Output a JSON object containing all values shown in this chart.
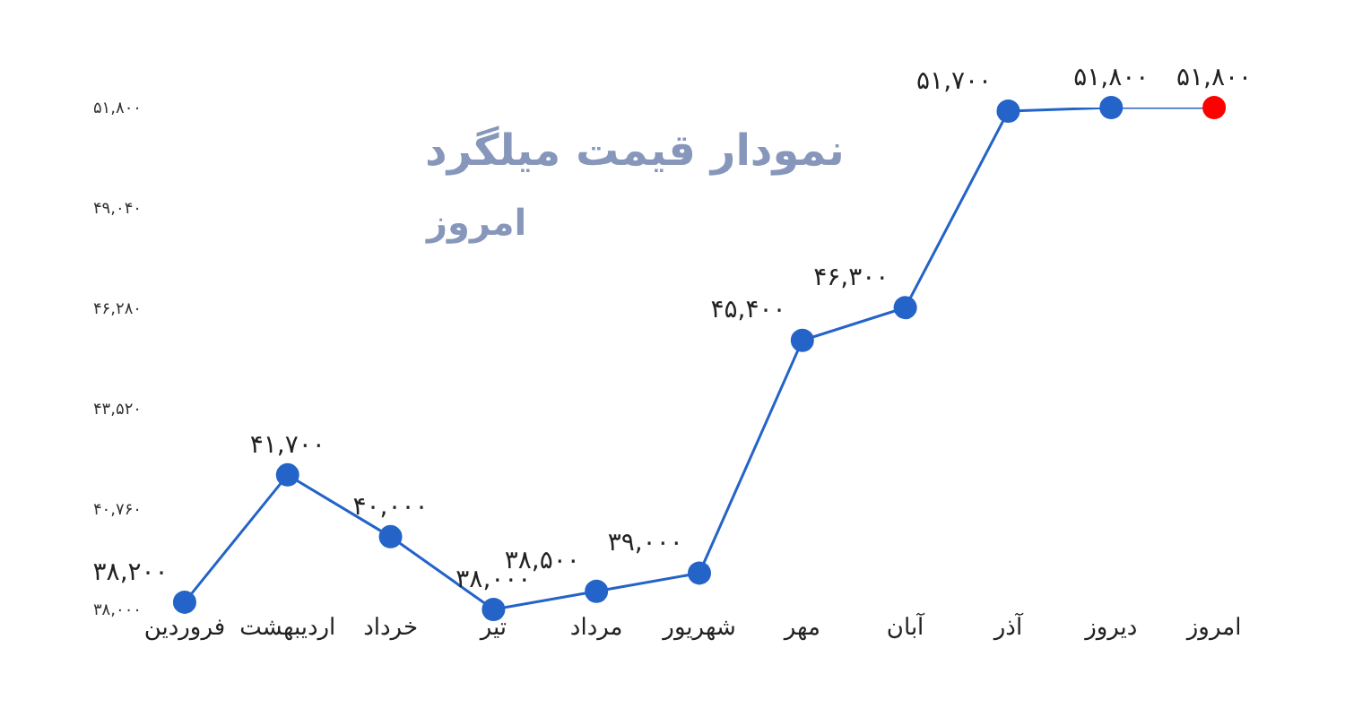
{
  "chart_data": {
    "type": "line",
    "title": "نمودار قیمت میلگرد",
    "subtitle": "امروز",
    "categories": [
      "فروردین",
      "اردیبهشت",
      "خرداد",
      "تیر",
      "مرداد",
      "شهریور",
      "مهر",
      "آبان",
      "آذر",
      "دیروز",
      "امروز"
    ],
    "series": [
      {
        "color": "#2463c8",
        "colors": [
          "#2463c8",
          "#2463c8",
          "#2463c8",
          "#2463c8",
          "#2463c8",
          "#2463c8",
          "#2463c8",
          "#2463c8",
          "#2463c8",
          "#2463c8",
          "#ff0000"
        ],
        "values": [
          38200,
          41700,
          40000,
          38000,
          38500,
          39000,
          45400,
          46300,
          51700,
          51800,
          51800
        ],
        "value_labels": [
          "۳۸,۲۰۰",
          "۴۱,۷۰۰",
          "۴۰,۰۰۰",
          "۳۸,۰۰۰",
          "۳۸,۵۰۰",
          "۳۹,۰۰۰",
          "۴۵,۴۰۰",
          "۴۶,۳۰۰",
          "۵۱,۷۰۰",
          "۵۱,۸۰۰",
          "۵۱,۸۰۰"
        ]
      }
    ],
    "ylim": [
      38000,
      51800
    ],
    "yticks": [
      {
        "value": 38000,
        "label": "۳۸,۰۰۰"
      },
      {
        "value": 40760,
        "label": "۴۰,۷۶۰"
      },
      {
        "value": 43520,
        "label": "۴۳,۵۲۰"
      },
      {
        "value": 46280,
        "label": "۴۶,۲۸۰"
      },
      {
        "value": 49040,
        "label": "۴۹,۰۴۰"
      },
      {
        "value": 51800,
        "label": "۵۱,۸۰۰"
      }
    ],
    "marker": "circle",
    "line_style": "solid",
    "legend": false
  }
}
